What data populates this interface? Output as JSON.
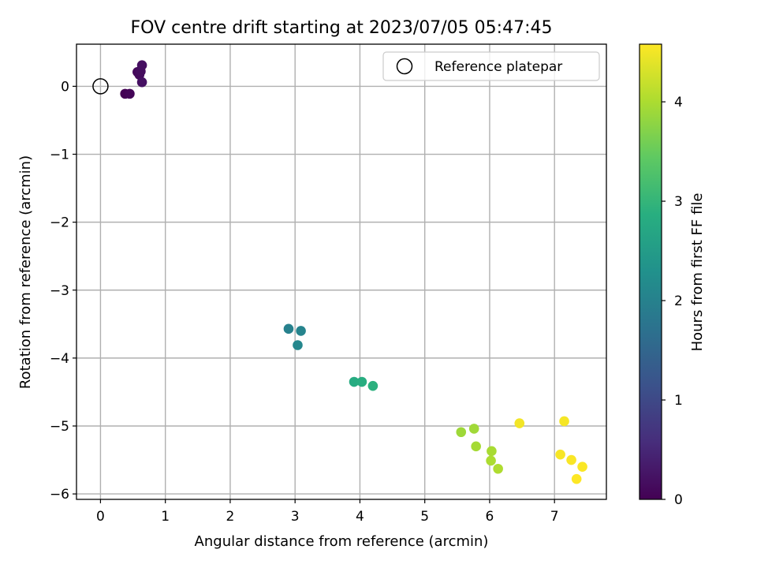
{
  "chart_data": {
    "type": "scatter",
    "title": "FOV centre drift starting at 2023/07/05 05:47:45",
    "xlabel": "Angular distance from reference (arcmin)",
    "ylabel": "Rotation from reference (arcmin)",
    "xlim": [
      -0.37,
      7.8
    ],
    "ylim": [
      -6.08,
      0.62
    ],
    "xticks": [
      0,
      1,
      2,
      3,
      4,
      5,
      6,
      7
    ],
    "yticks": [
      0,
      -1,
      -2,
      -3,
      -4,
      -5,
      -6
    ],
    "grid": true,
    "legend": {
      "position": "top-right",
      "entries": [
        {
          "label": "Reference platepar",
          "marker": "hollow-circle"
        }
      ]
    },
    "reference_point": {
      "x": 0,
      "y": 0
    },
    "colorbar": {
      "label": "Hours from first FF file",
      "colormap": "viridis",
      "range": [
        0,
        4.58
      ],
      "ticks": [
        0,
        1,
        2,
        3,
        4
      ]
    },
    "points": [
      {
        "x": 0.38,
        "y": -0.11,
        "hours": 0.0
      },
      {
        "x": 0.45,
        "y": -0.11,
        "hours": 0.05
      },
      {
        "x": 0.57,
        "y": 0.21,
        "hours": 0.1
      },
      {
        "x": 0.6,
        "y": 0.17,
        "hours": 0.12
      },
      {
        "x": 0.62,
        "y": 0.22,
        "hours": 0.15
      },
      {
        "x": 0.64,
        "y": 0.31,
        "hours": 0.18
      },
      {
        "x": 0.64,
        "y": 0.06,
        "hours": 0.2
      },
      {
        "x": 2.9,
        "y": -3.57,
        "hours": 2.0
      },
      {
        "x": 3.09,
        "y": -3.6,
        "hours": 2.05
      },
      {
        "x": 3.04,
        "y": -3.81,
        "hours": 2.1
      },
      {
        "x": 3.91,
        "y": -4.35,
        "hours": 2.8
      },
      {
        "x": 4.03,
        "y": -4.35,
        "hours": 2.85
      },
      {
        "x": 4.2,
        "y": -4.41,
        "hours": 2.9
      },
      {
        "x": 5.56,
        "y": -5.09,
        "hours": 3.9
      },
      {
        "x": 5.76,
        "y": -5.04,
        "hours": 3.92
      },
      {
        "x": 5.79,
        "y": -5.3,
        "hours": 3.95
      },
      {
        "x": 6.03,
        "y": -5.37,
        "hours": 3.97
      },
      {
        "x": 6.02,
        "y": -5.51,
        "hours": 4.0
      },
      {
        "x": 6.13,
        "y": -5.63,
        "hours": 4.02
      },
      {
        "x": 6.46,
        "y": -4.96,
        "hours": 4.5
      },
      {
        "x": 7.15,
        "y": -4.93,
        "hours": 4.52
      },
      {
        "x": 7.09,
        "y": -5.42,
        "hours": 4.54
      },
      {
        "x": 7.26,
        "y": -5.5,
        "hours": 4.55
      },
      {
        "x": 7.43,
        "y": -5.6,
        "hours": 4.56
      },
      {
        "x": 7.34,
        "y": -5.78,
        "hours": 4.58
      }
    ]
  }
}
